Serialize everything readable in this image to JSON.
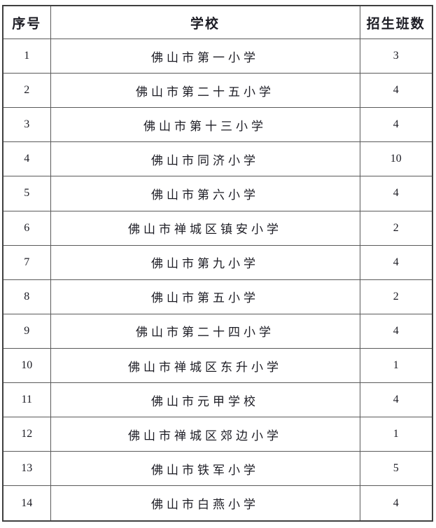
{
  "table": {
    "columns": [
      {
        "label": "序号"
      },
      {
        "label": "学校"
      },
      {
        "label": "招生班数"
      }
    ],
    "rows": [
      {
        "no": "1",
        "school": "佛山市第一小学",
        "classes": "3"
      },
      {
        "no": "2",
        "school": "佛山市第二十五小学",
        "classes": "4"
      },
      {
        "no": "3",
        "school": "佛山市第十三小学",
        "classes": "4"
      },
      {
        "no": "4",
        "school": "佛山市同济小学",
        "classes": "10"
      },
      {
        "no": "5",
        "school": "佛山市第六小学",
        "classes": "4"
      },
      {
        "no": "6",
        "school": "佛山市禅城区镇安小学",
        "classes": "2"
      },
      {
        "no": "7",
        "school": "佛山市第九小学",
        "classes": "4"
      },
      {
        "no": "8",
        "school": "佛山市第五小学",
        "classes": "2"
      },
      {
        "no": "9",
        "school": "佛山市第二十四小学",
        "classes": "4"
      },
      {
        "no": "10",
        "school": "佛山市禅城区东升小学",
        "classes": "1"
      },
      {
        "no": "11",
        "school": "佛山市元甲学校",
        "classes": "4"
      },
      {
        "no": "12",
        "school": "佛山市禅城区郊边小学",
        "classes": "1"
      },
      {
        "no": "13",
        "school": "佛山市铁军小学",
        "classes": "5"
      },
      {
        "no": "14",
        "school": "佛山市白燕小学",
        "classes": "4"
      }
    ]
  }
}
